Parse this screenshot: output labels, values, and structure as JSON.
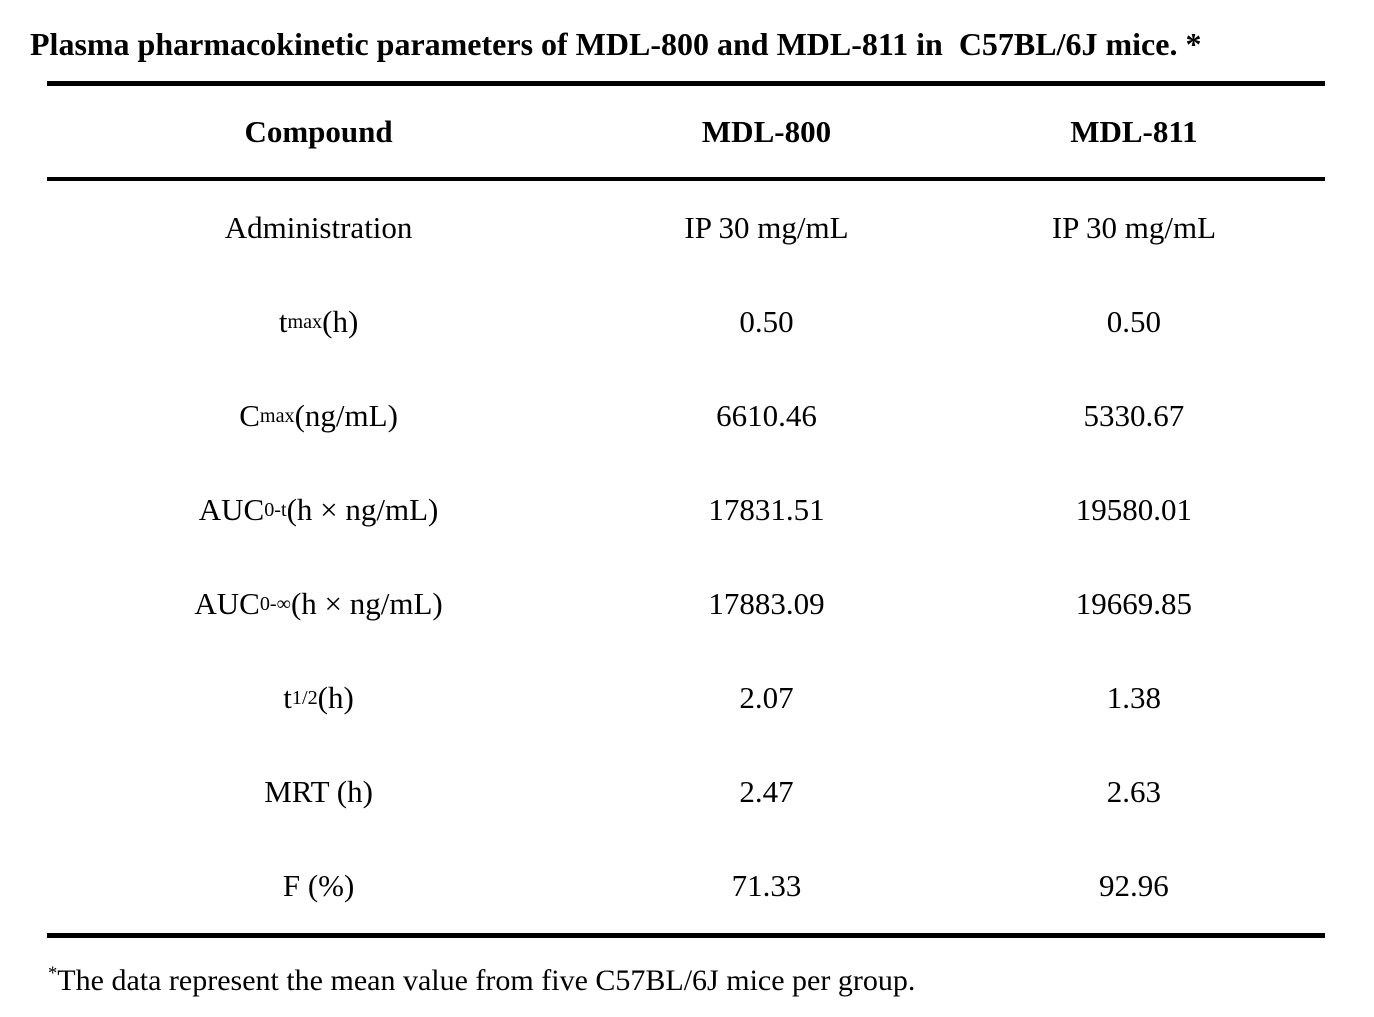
{
  "title": "Plasma pharmacokinetic parameters of MDL-800 and MDL-811 in  C57BL/6J mice. *",
  "table": {
    "headers": [
      "Compound",
      "MDL-800",
      "MDL-811"
    ],
    "rows": [
      {
        "label": [
          {
            "t": "Administration"
          }
        ],
        "values": [
          "IP 30 mg/mL",
          "IP 30 mg/mL"
        ]
      },
      {
        "label": [
          {
            "t": "t"
          },
          {
            "t": "max",
            "sub": true
          },
          {
            "t": " (h)"
          }
        ],
        "values": [
          "0.50",
          "0.50"
        ]
      },
      {
        "label": [
          {
            "t": "C"
          },
          {
            "t": "max",
            "sub": true
          },
          {
            "t": " (ng/mL)"
          }
        ],
        "values": [
          "6610.46",
          "5330.67"
        ]
      },
      {
        "label": [
          {
            "t": "AUC"
          },
          {
            "t": "0-t",
            "sub": true
          },
          {
            "t": " (h × ng/mL)"
          }
        ],
        "values": [
          "17831.51",
          "19580.01"
        ]
      },
      {
        "label": [
          {
            "t": "AUC"
          },
          {
            "t": "0-∞",
            "sub": true
          },
          {
            "t": " (h × ng/mL)"
          }
        ],
        "values": [
          "17883.09",
          "19669.85"
        ]
      },
      {
        "label": [
          {
            "t": "t"
          },
          {
            "t": "1/2",
            "sub": true
          },
          {
            "t": " (h)"
          }
        ],
        "values": [
          "2.07",
          "1.38"
        ]
      },
      {
        "label": [
          {
            "t": "MRT (h)"
          }
        ],
        "values": [
          "2.47",
          "2.63"
        ]
      },
      {
        "label": [
          {
            "t": "F (%)"
          }
        ],
        "values": [
          "71.33",
          "92.96"
        ]
      }
    ]
  },
  "footnote": {
    "marker": "*",
    "text": "The data represent the mean value from five C57BL/6J mice per group."
  },
  "chart_data": {
    "type": "table",
    "title": "Plasma pharmacokinetic parameters of MDL-800 and MDL-811 in C57BL/6J mice.",
    "columns": [
      "Compound",
      "MDL-800",
      "MDL-811"
    ],
    "rows": [
      [
        "Administration",
        "IP 30 mg/mL",
        "IP 30 mg/mL"
      ],
      [
        "tmax (h)",
        0.5,
        0.5
      ],
      [
        "Cmax (ng/mL)",
        6610.46,
        5330.67
      ],
      [
        "AUC0-t (h × ng/mL)",
        17831.51,
        19580.01
      ],
      [
        "AUC0-∞ (h × ng/mL)",
        17883.09,
        19669.85
      ],
      [
        "t1/2 (h)",
        2.07,
        1.38
      ],
      [
        "MRT (h)",
        2.47,
        2.63
      ],
      [
        "F (%)",
        71.33,
        92.96
      ]
    ]
  }
}
